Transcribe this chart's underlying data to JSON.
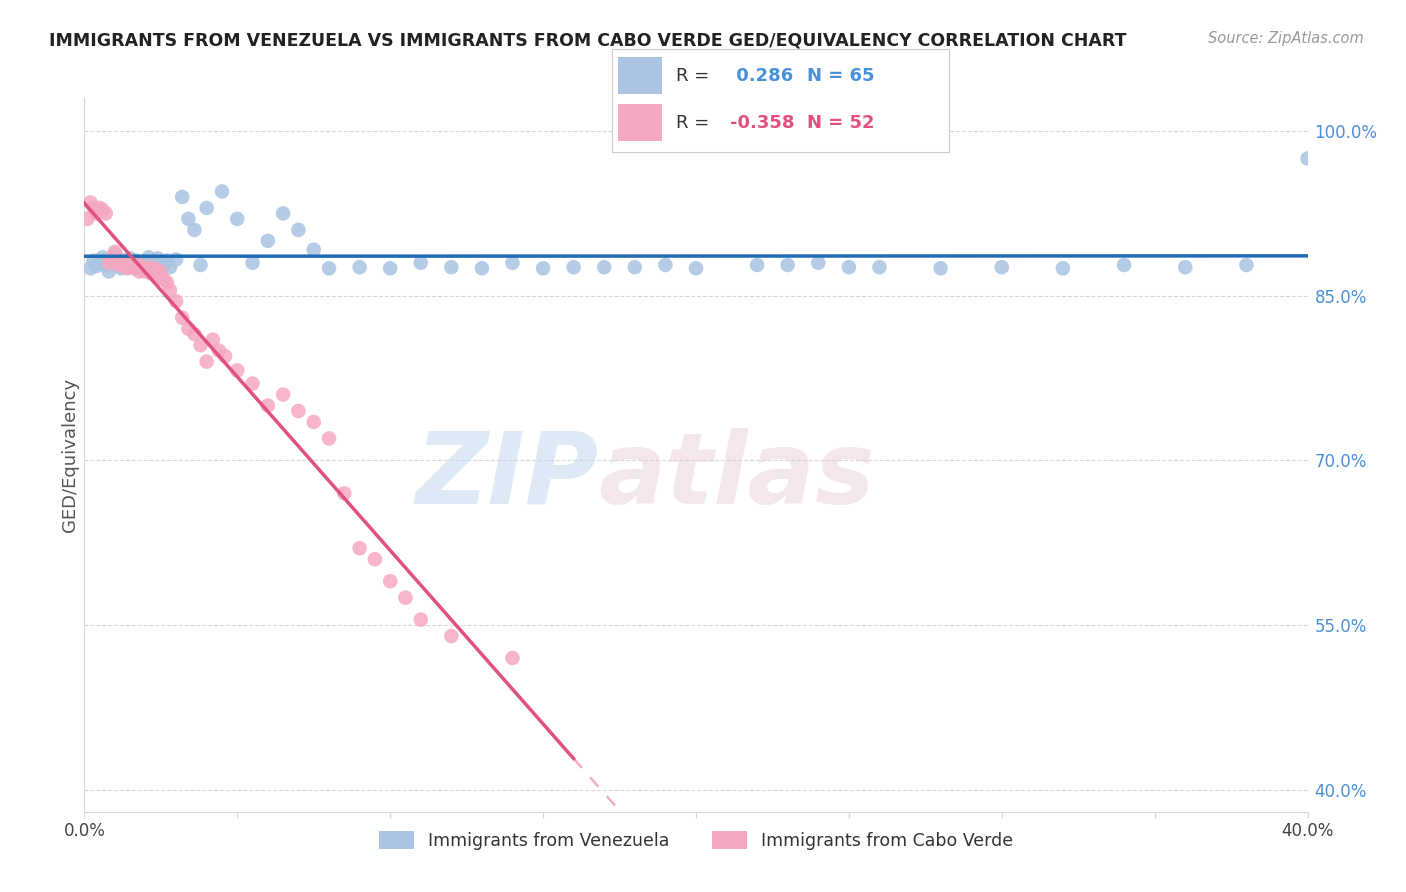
{
  "title": "IMMIGRANTS FROM VENEZUELA VS IMMIGRANTS FROM CABO VERDE GED/EQUIVALENCY CORRELATION CHART",
  "source": "Source: ZipAtlas.com",
  "ylabel": "GED/Equivalency",
  "ylabel_right_ticks": [
    "100.0%",
    "85.0%",
    "70.0%",
    "55.0%",
    "40.0%"
  ],
  "ylabel_right_vals": [
    1.0,
    0.85,
    0.7,
    0.55,
    0.4
  ],
  "xmin": 0.0,
  "xmax": 0.4,
  "ymin": 0.38,
  "ymax": 1.03,
  "blue_R": 0.286,
  "blue_N": 65,
  "pink_R": -0.358,
  "pink_N": 52,
  "blue_color": "#aac4e2",
  "pink_color": "#f5a8c0",
  "blue_line_color": "#1f6bb5",
  "pink_line_color": "#e05080",
  "pink_line_solid_color": "#e05080",
  "pink_line_dash_color": "#f0b0c0",
  "legend_label_blue": "Immigrants from Venezuela",
  "legend_label_pink": "Immigrants from Cabo Verde",
  "watermark_zip": "ZIP",
  "watermark_atlas": "atlas",
  "grid_color": "#d8d8d8",
  "background_color": "#ffffff",
  "blue_scatter_x": [
    0.002,
    0.003,
    0.004,
    0.005,
    0.006,
    0.007,
    0.008,
    0.009,
    0.01,
    0.011,
    0.012,
    0.013,
    0.014,
    0.015,
    0.016,
    0.017,
    0.018,
    0.019,
    0.02,
    0.021,
    0.022,
    0.023,
    0.024,
    0.025,
    0.026,
    0.027,
    0.028,
    0.03,
    0.032,
    0.034,
    0.036,
    0.038,
    0.04,
    0.045,
    0.05,
    0.055,
    0.06,
    0.065,
    0.07,
    0.075,
    0.08,
    0.09,
    0.1,
    0.11,
    0.12,
    0.13,
    0.14,
    0.15,
    0.16,
    0.18,
    0.2,
    0.22,
    0.24,
    0.26,
    0.28,
    0.3,
    0.32,
    0.34,
    0.36,
    0.38,
    0.4,
    0.17,
    0.19,
    0.23,
    0.25
  ],
  "blue_scatter_y": [
    0.875,
    0.882,
    0.877,
    0.88,
    0.885,
    0.878,
    0.872,
    0.88,
    0.888,
    0.878,
    0.875,
    0.882,
    0.876,
    0.884,
    0.878,
    0.882,
    0.876,
    0.88,
    0.878,
    0.885,
    0.88,
    0.876,
    0.884,
    0.88,
    0.878,
    0.882,
    0.876,
    0.883,
    0.94,
    0.92,
    0.91,
    0.878,
    0.93,
    0.945,
    0.92,
    0.88,
    0.9,
    0.925,
    0.91,
    0.892,
    0.875,
    0.876,
    0.875,
    0.88,
    0.876,
    0.875,
    0.88,
    0.875,
    0.876,
    0.876,
    0.875,
    0.878,
    0.88,
    0.876,
    0.875,
    0.876,
    0.875,
    0.878,
    0.876,
    0.878,
    0.975,
    0.876,
    0.878,
    0.878,
    0.876
  ],
  "pink_scatter_x": [
    0.001,
    0.002,
    0.003,
    0.004,
    0.005,
    0.006,
    0.007,
    0.008,
    0.009,
    0.01,
    0.011,
    0.012,
    0.013,
    0.014,
    0.015,
    0.016,
    0.017,
    0.018,
    0.019,
    0.02,
    0.021,
    0.022,
    0.023,
    0.024,
    0.025,
    0.026,
    0.027,
    0.028,
    0.03,
    0.032,
    0.034,
    0.036,
    0.038,
    0.04,
    0.042,
    0.044,
    0.046,
    0.05,
    0.055,
    0.06,
    0.065,
    0.07,
    0.075,
    0.08,
    0.085,
    0.09,
    0.095,
    0.1,
    0.105,
    0.11,
    0.12,
    0.14
  ],
  "pink_scatter_y": [
    0.92,
    0.935,
    0.93,
    0.925,
    0.93,
    0.928,
    0.925,
    0.88,
    0.885,
    0.89,
    0.878,
    0.882,
    0.878,
    0.875,
    0.878,
    0.875,
    0.88,
    0.872,
    0.876,
    0.872,
    0.876,
    0.87,
    0.875,
    0.866,
    0.872,
    0.865,
    0.862,
    0.855,
    0.845,
    0.83,
    0.82,
    0.815,
    0.805,
    0.79,
    0.81,
    0.8,
    0.795,
    0.782,
    0.77,
    0.75,
    0.76,
    0.745,
    0.735,
    0.72,
    0.67,
    0.62,
    0.61,
    0.59,
    0.575,
    0.555,
    0.54,
    0.52
  ],
  "pink_line_solid_end_x": 0.16,
  "pink_line_dash_start_x": 0.16
}
